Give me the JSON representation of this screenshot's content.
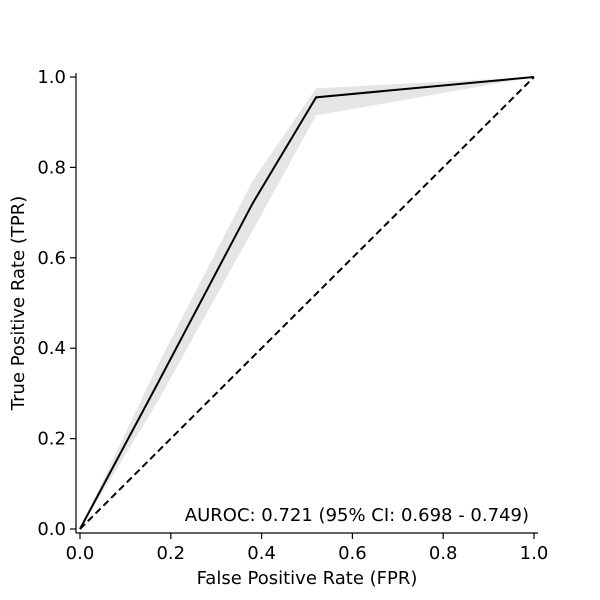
{
  "chart_data": {
    "type": "line",
    "xlabel": "False Positive Rate (FPR)",
    "ylabel": "True Positive Rate (TPR)",
    "xlim": [
      0,
      1
    ],
    "ylim": [
      0,
      1
    ],
    "xticks": [
      "0.0",
      "0.2",
      "0.4",
      "0.6",
      "0.8",
      "1.0"
    ],
    "yticks": [
      "0.0",
      "0.2",
      "0.4",
      "0.6",
      "0.8",
      "1.0"
    ],
    "grid": false,
    "annotation": "AUROC: 0.721 (95% CI: 0.698 - 0.749)",
    "series": [
      {
        "style": "solid",
        "color": "#000000",
        "x": [
          0.0,
          0.17,
          0.38,
          0.52,
          1.0
        ],
        "y": [
          0.0,
          0.32,
          0.72,
          0.955,
          1.0
        ]
      },
      {
        "style": "dashed",
        "color": "#000000",
        "x": [
          0.0,
          1.0
        ],
        "y": [
          0.0,
          1.0
        ]
      }
    ],
    "confidence_band": {
      "color": "#e5e5e5",
      "x": [
        0.0,
        0.17,
        0.38,
        0.52,
        1.0
      ],
      "upper": [
        0.0,
        0.36,
        0.77,
        0.975,
        1.0
      ],
      "lower": [
        0.0,
        0.28,
        0.66,
        0.915,
        1.0
      ]
    }
  }
}
